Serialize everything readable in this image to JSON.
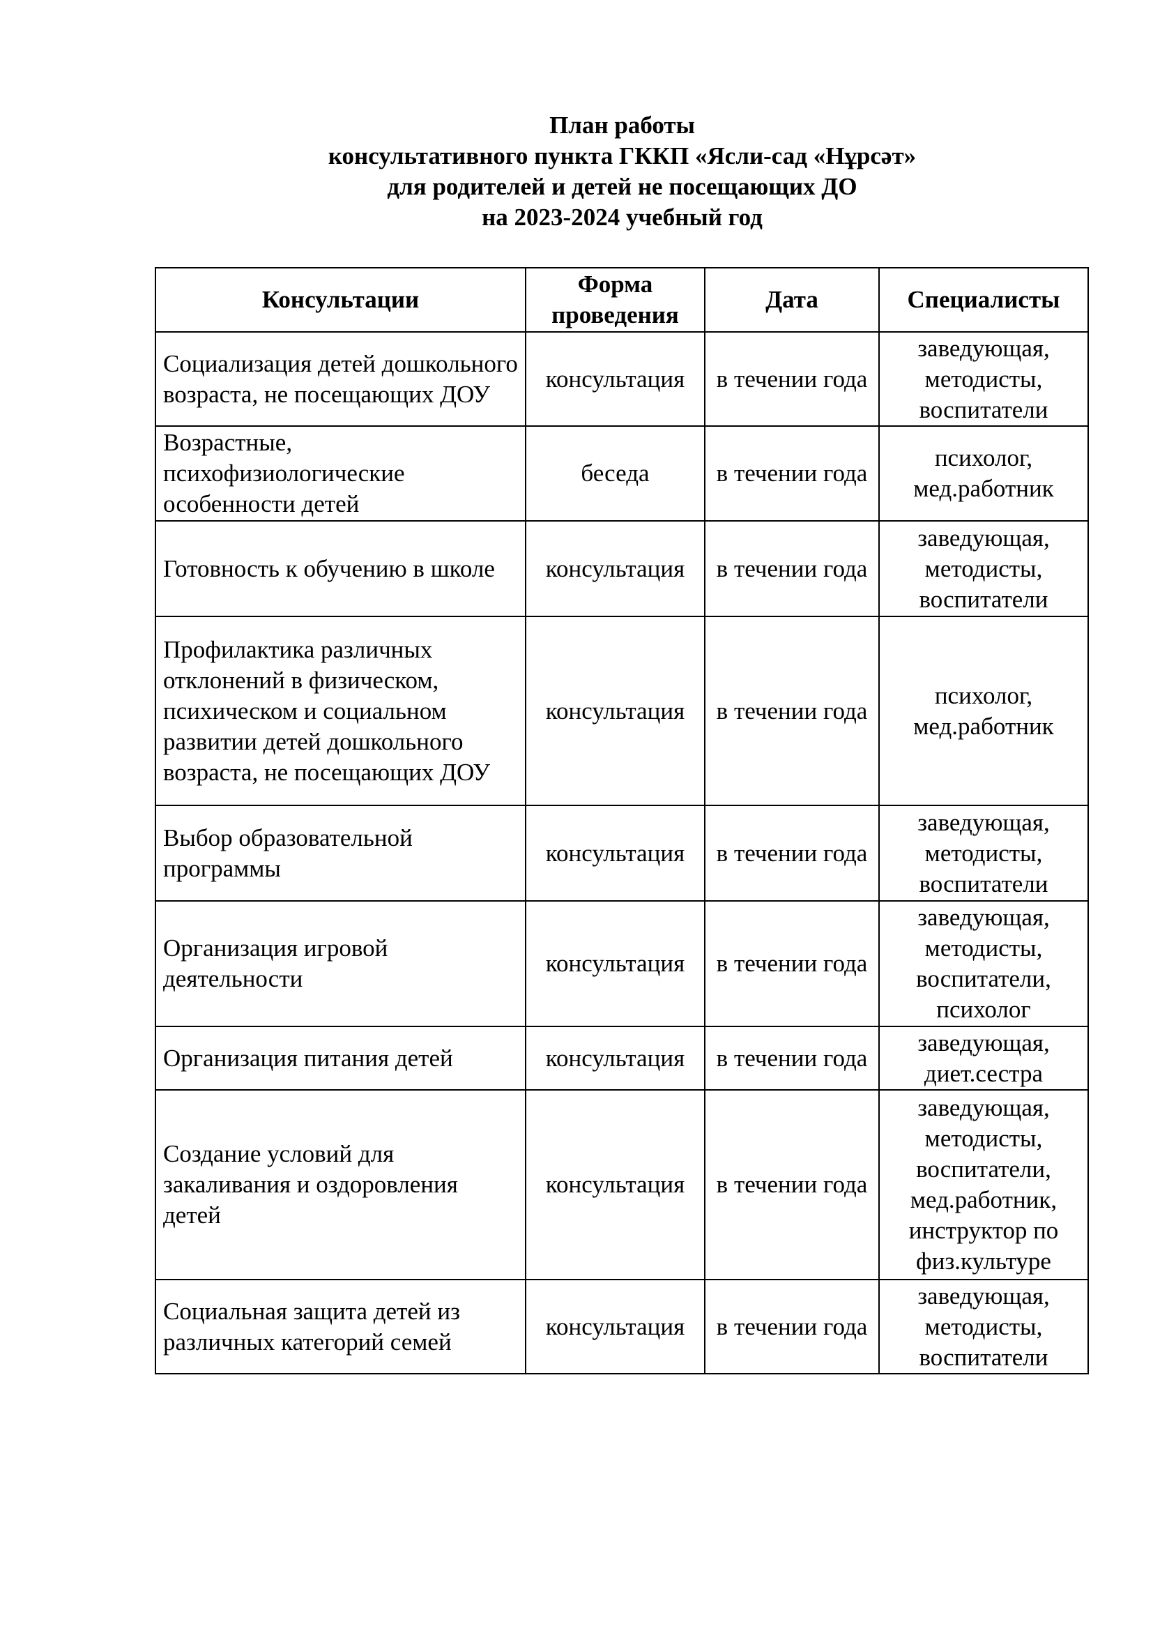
{
  "title": {
    "line1": "План  работы",
    "line2": "консультативного пункта ГККП «Ясли-сад «Нұрсәт»",
    "line3": "для родителей и детей не посещающих ДО",
    "line4": "на 2023-2024 учебный год"
  },
  "table": {
    "headers": [
      "Консультации",
      "Форма проведения",
      "Дата",
      "Специалисты"
    ],
    "rows": [
      [
        "Социализация детей дошкольного возраста, не посещающих ДОУ",
        "консультация",
        "в течении года",
        "заведующая, методисты, воспитатели"
      ],
      [
        "Возрастные, психофизиологические особенности детей",
        "беседа",
        "в течении года",
        "психолог, мед.работник"
      ],
      [
        "Готовность к обучению в школе",
        "консультация",
        "в течении года",
        "заведующая, методисты, воспитатели"
      ],
      [
        "Профилактика различных отклонений в физическом, психическом и социальном развитии детей дошкольного возраста, не посещающих ДОУ",
        "консультация",
        "в течении года",
        "психолог, мед.работник"
      ],
      [
        "Выбор образовательной программы",
        "консультация",
        "в течении года",
        "заведующая, методисты, воспитатели"
      ],
      [
        "Организация игровой деятельности",
        "консультация",
        "в течении года",
        "заведующая, методисты, воспитатели, психолог"
      ],
      [
        "Организация питания детей",
        "консультация",
        "в течении года",
        "заведующая, диет.сестра"
      ],
      [
        "Создание условий для закаливания и оздоровления детей",
        "консультация",
        "в течении года",
        "заведующая, методисты, воспитатели, мед.работник, инструктор по физ.культуре"
      ],
      [
        "Социальная защита детей из различных категорий семей",
        "консультация",
        "в течении года",
        "заведующая, методисты, воспитатели"
      ]
    ]
  }
}
